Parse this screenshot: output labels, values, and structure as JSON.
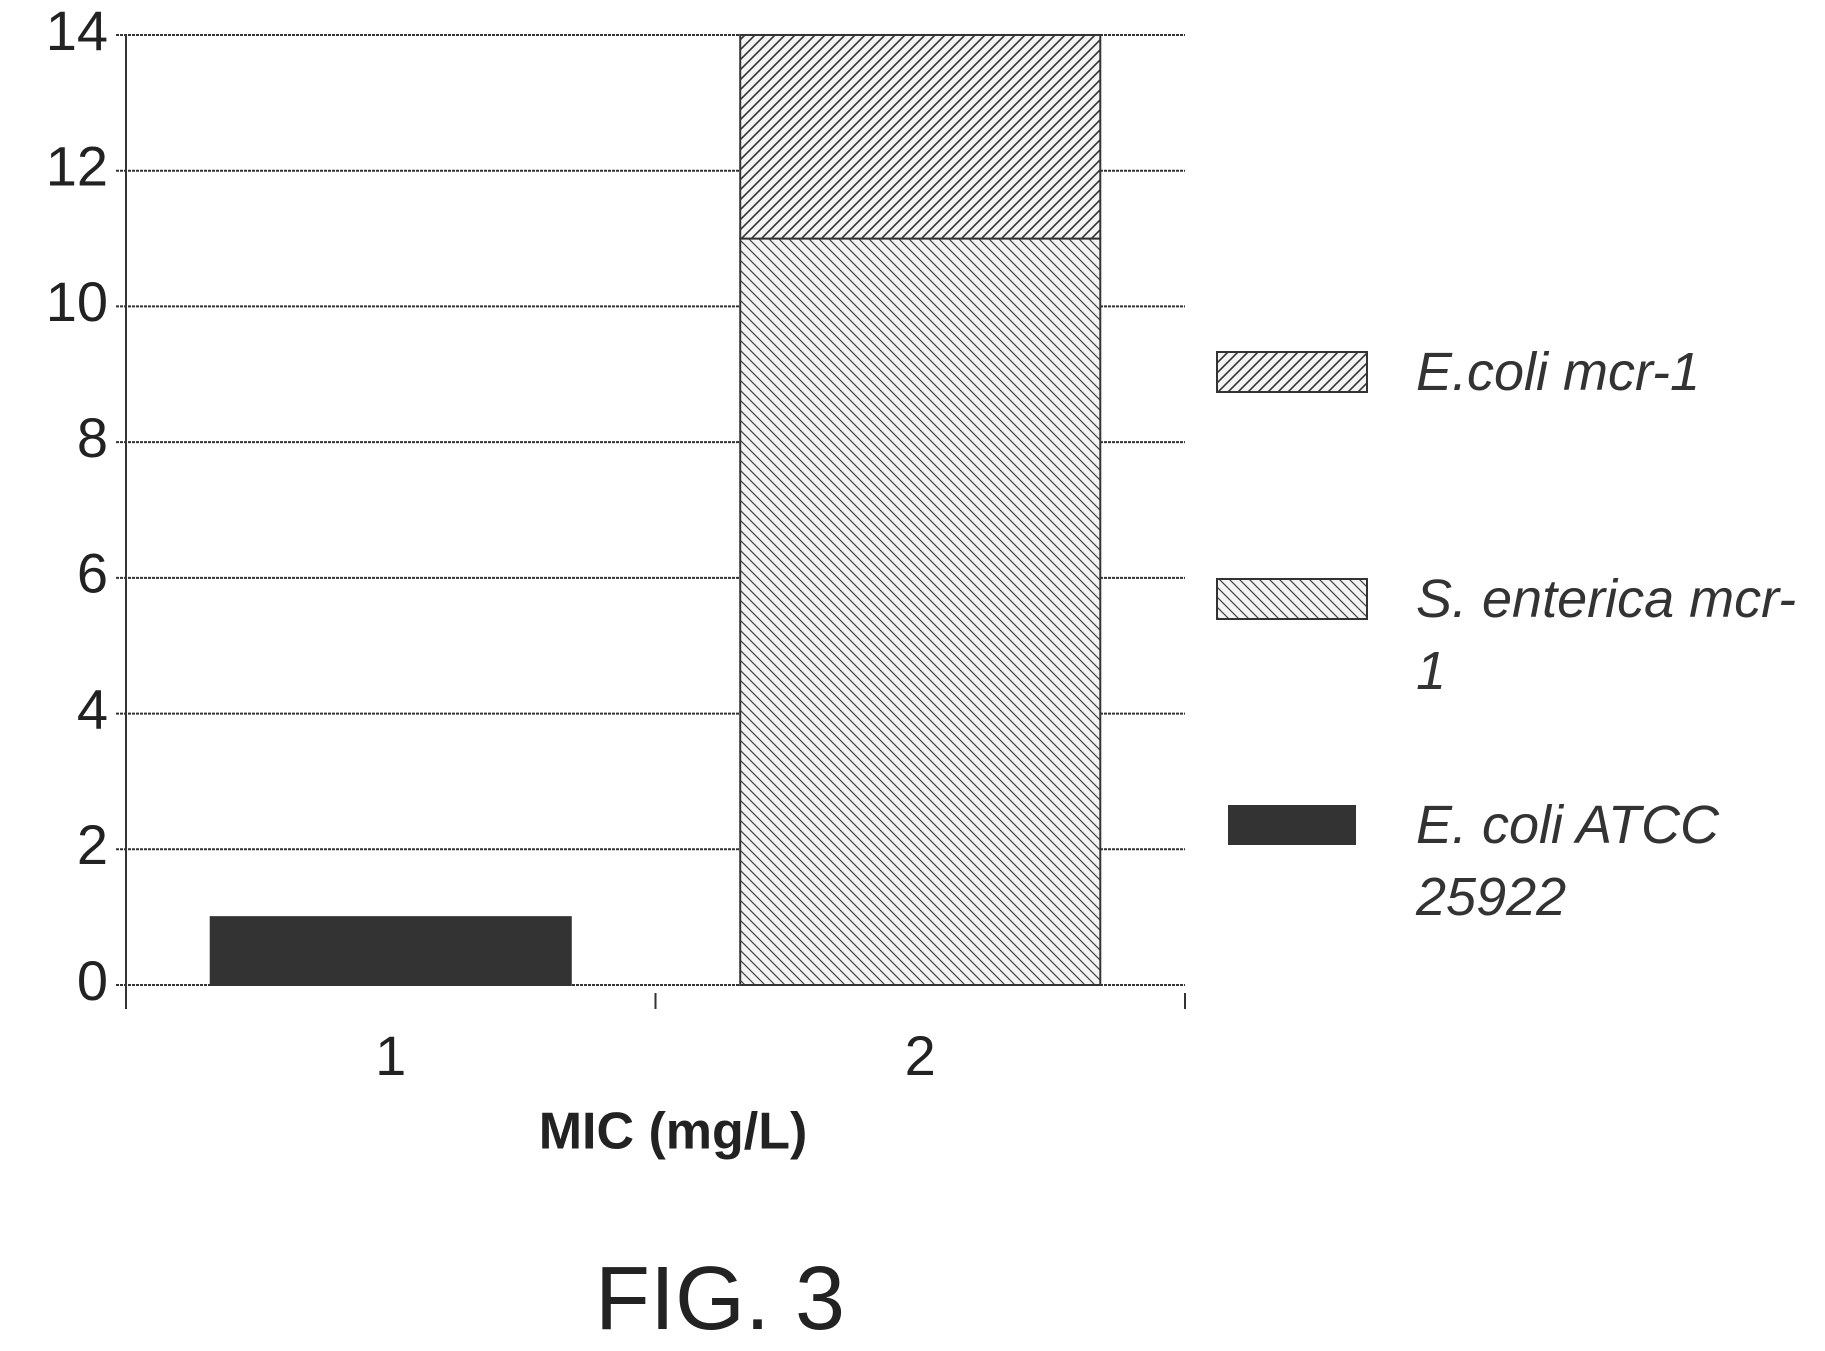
{
  "chart_data": {
    "type": "stacked-bar",
    "categories": [
      "1",
      "2"
    ],
    "series": [
      {
        "name": "E. coli ATCC 25922",
        "color": "#333333",
        "hatch": "solid",
        "values": [
          1,
          null
        ]
      },
      {
        "name": "S. enterica mcr-1",
        "color": "#444444",
        "hatch": "backward",
        "values": [
          null,
          11
        ]
      },
      {
        "name": "E.coli mcr-1",
        "color": "#333333",
        "hatch": "forward",
        "values": [
          null,
          3
        ]
      }
    ],
    "xlabel": "MIC (mg/L)",
    "ylim": [
      0,
      14
    ],
    "yticks": [
      0,
      2,
      4,
      6,
      8,
      10,
      12,
      14
    ],
    "grid": true,
    "legend": "right",
    "caption": "FIG. 3"
  }
}
